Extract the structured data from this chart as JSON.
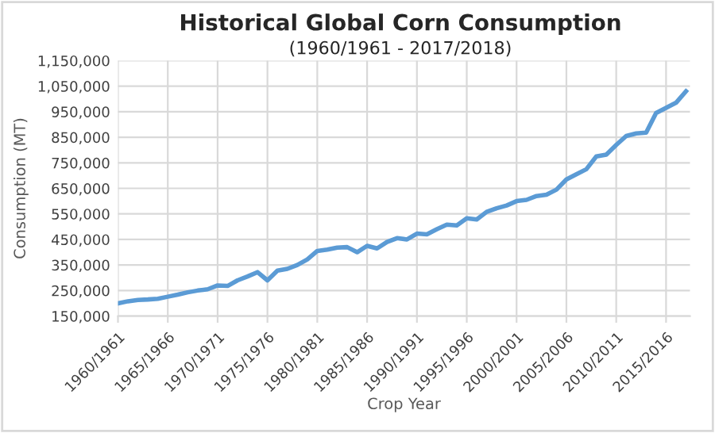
{
  "chart_data": {
    "type": "line",
    "title": "Historical Global Corn Consumption",
    "subtitle": "(1960/1961 - 2017/2018)",
    "xlabel": "Crop Year",
    "ylabel": "Consumption (MT)",
    "categories": [
      "1960/1961",
      null,
      null,
      null,
      null,
      "1965/1966",
      null,
      null,
      null,
      null,
      "1970/1971",
      null,
      null,
      null,
      null,
      "1975/1976",
      null,
      null,
      null,
      null,
      "1980/1981",
      null,
      null,
      null,
      null,
      "1985/1986",
      null,
      null,
      null,
      null,
      "1990/1991",
      null,
      null,
      null,
      null,
      "1995/1996",
      null,
      null,
      null,
      null,
      "2000/2001",
      null,
      null,
      null,
      null,
      "2005/2006",
      null,
      null,
      null,
      null,
      "2010/2011",
      null,
      null,
      null,
      null,
      "2015/2016",
      null,
      null
    ],
    "series": [
      {
        "color": "#5b9bd5",
        "values": [
          200000,
          208000,
          213000,
          215000,
          218000,
          226000,
          234000,
          243000,
          250000,
          255000,
          270000,
          268000,
          290000,
          305000,
          322000,
          290000,
          328000,
          335000,
          350000,
          372000,
          405000,
          410000,
          418000,
          420000,
          400000,
          425000,
          415000,
          440000,
          455000,
          450000,
          473000,
          470000,
          490000,
          508000,
          505000,
          533000,
          528000,
          558000,
          572000,
          583000,
          600000,
          605000,
          620000,
          625000,
          645000,
          685000,
          705000,
          725000,
          775000,
          782000,
          820000,
          855000,
          865000,
          868000,
          945000,
          965000,
          985000,
          1030000
        ]
      }
    ],
    "ylim": [
      150000,
      1150000
    ],
    "yticks": [
      {
        "value": 150000,
        "label": "150,000"
      },
      {
        "value": 250000,
        "label": "250,000"
      },
      {
        "value": 350000,
        "label": "350,000"
      },
      {
        "value": 450000,
        "label": "450,000"
      },
      {
        "value": 550000,
        "label": "550,000"
      },
      {
        "value": 650000,
        "label": "650,000"
      },
      {
        "value": 750000,
        "label": "750,000"
      },
      {
        "value": 850000,
        "label": "850,000"
      },
      {
        "value": 950000,
        "label": "950,000"
      },
      {
        "value": 1050000,
        "label": "1,050,000"
      },
      {
        "value": 1150000,
        "label": "1,150,000"
      }
    ],
    "grid": true,
    "marker": "none",
    "line_style": "solid"
  }
}
